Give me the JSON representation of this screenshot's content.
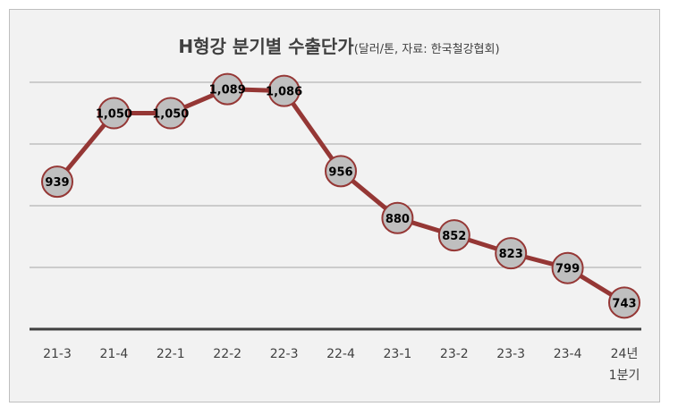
{
  "chart_data": {
    "type": "line",
    "title": "H형강 분기별 수출단가",
    "subtitle": "(달러/톤, 자료: 한국철강협회)",
    "categories": [
      "21-3",
      "21-4",
      "22-1",
      "22-2",
      "22-3",
      "22-4",
      "23-1",
      "23-2",
      "23-3",
      "23-4",
      "24년 1분기"
    ],
    "category_lines": [
      [
        "21-3"
      ],
      [
        "21-4"
      ],
      [
        "22-1"
      ],
      [
        "22-2"
      ],
      [
        "22-3"
      ],
      [
        "22-4"
      ],
      [
        "23-1"
      ],
      [
        "23-2"
      ],
      [
        "23-3"
      ],
      [
        "23-4"
      ],
      [
        "24년",
        "1분기"
      ]
    ],
    "series": [
      {
        "values": [
          939,
          1050,
          1050,
          1089,
          1086,
          956,
          880,
          852,
          823,
          799,
          743
        ],
        "labels": [
          "939",
          "1,050",
          "1,050",
          "1,089",
          "1,086",
          "956",
          "880",
          "852",
          "823",
          "799",
          "743"
        ]
      }
    ],
    "ylim": [
      700,
      1100
    ],
    "y_gridlines": [
      800,
      900,
      1000,
      1100
    ],
    "y_tick_labels_shown": false,
    "grid": true,
    "colors": {
      "line": "#953735",
      "marker_fill": "#bfbfbf",
      "marker_stroke": "#953735",
      "background": "#f2f2f2",
      "gridline": "#a6a6a6",
      "axis": "#404040"
    }
  }
}
